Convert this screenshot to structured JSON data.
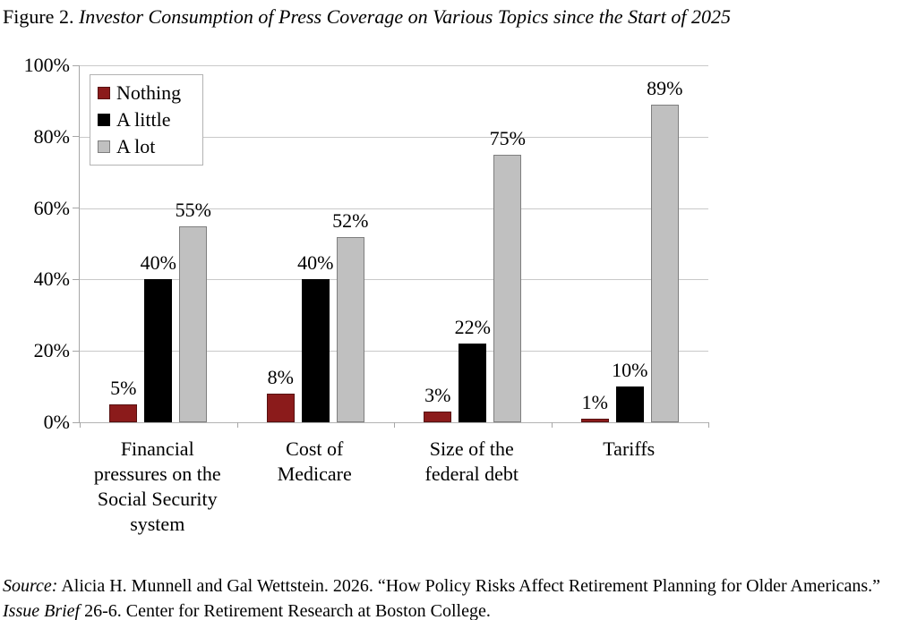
{
  "title": {
    "prefix": "Figure 2. ",
    "italic": "Investor Consumption of Press Coverage on Various Topics since the Start of 2025"
  },
  "chart_data": {
    "type": "bar",
    "title": "Investor Consumption of Press Coverage on Various Topics since the Start of 2025",
    "categories": [
      "Financial\npressures on the\nSocial Security\nsystem",
      "Cost of\nMedicare",
      "Size of the\nfederal debt",
      "Tariffs"
    ],
    "series": [
      {
        "name": "Nothing",
        "color": "#8B1B1B",
        "border_color": "#571111",
        "values": [
          5,
          8,
          3,
          1
        ]
      },
      {
        "name": "A little",
        "color": "#000000",
        "border_color": "#000000",
        "values": [
          40,
          40,
          22,
          10
        ]
      },
      {
        "name": "A lot",
        "color": "#C0C0C0",
        "border_color": "#7F7F7F",
        "values": [
          55,
          52,
          75,
          89
        ]
      }
    ],
    "ylim": [
      0,
      100
    ],
    "yticks": [
      0,
      20,
      40,
      60,
      80,
      100
    ],
    "ytick_suffix": "%",
    "value_label_suffix": "%",
    "grid": true,
    "legend_position": "top-left",
    "gridline_color": "#c9c9c9",
    "axis_color": "#a6a6a6"
  },
  "source": {
    "label": "Source:",
    "text1": " Alicia H. Munnell and Gal Wettstein. 2026. “How Policy Risks Affect Retirement Planning for Older Americans.” ",
    "brief": "Issue Brief",
    "text2": " 26-6. Center for Retirement Research at Boston College."
  }
}
